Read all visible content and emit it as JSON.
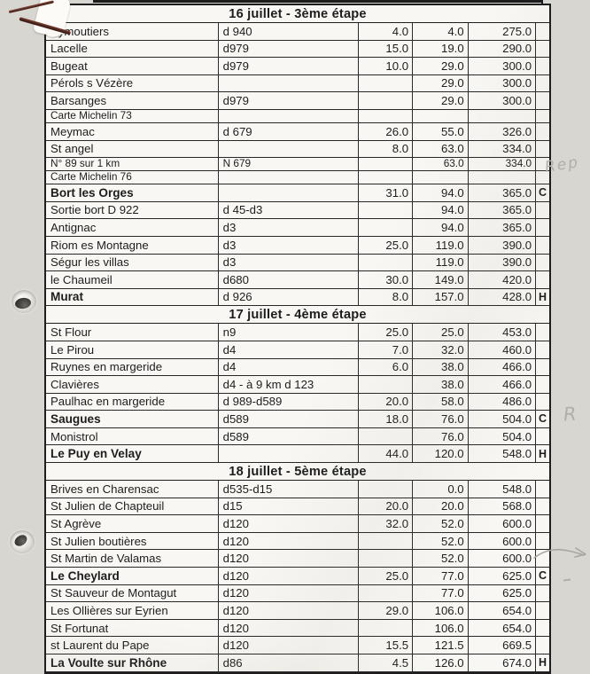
{
  "table": {
    "rows": [
      {
        "type": "stage",
        "label": "16 juillet - 3ème étape"
      },
      {
        "name": "Eymoutiers",
        "route": "d 940",
        "leg": "4.0",
        "cum": "4.0",
        "total": "275.0",
        "flag": ""
      },
      {
        "name": "Lacelle",
        "route": "d979",
        "leg": "15.0",
        "cum": "19.0",
        "total": "290.0",
        "flag": ""
      },
      {
        "name": "Bugeat",
        "route": "d979",
        "leg": "10.0",
        "cum": "29.0",
        "total": "300.0",
        "flag": ""
      },
      {
        "name": "Pérols s Vézère",
        "route": "",
        "leg": "",
        "cum": "29.0",
        "total": "300.0",
        "flag": ""
      },
      {
        "name": "Barsanges",
        "route": "d979",
        "leg": "",
        "cum": "29.0",
        "total": "300.0",
        "flag": ""
      },
      {
        "type": "note",
        "name": "Carte Michelin 73",
        "route": "",
        "leg": "",
        "cum": "",
        "total": "",
        "flag": ""
      },
      {
        "name": "Meymac",
        "route": "d 679",
        "leg": "26.0",
        "cum": "55.0",
        "total": "326.0",
        "flag": ""
      },
      {
        "name": "St angel",
        "route": "",
        "leg": "8.0",
        "cum": "63.0",
        "total": "334.0",
        "flag": ""
      },
      {
        "type": "note",
        "name": "N° 89 sur 1 km",
        "route": "N 679",
        "leg": "",
        "cum": "63.0",
        "total": "334.0",
        "flag": ""
      },
      {
        "type": "note",
        "name": "Carte Michelin 76",
        "route": "",
        "leg": "",
        "cum": "",
        "total": "",
        "flag": ""
      },
      {
        "name": "Bort les Orges",
        "bold": true,
        "route": "",
        "leg": "31.0",
        "cum": "94.0",
        "total": "365.0",
        "flag": "C"
      },
      {
        "name": "Sortie bort  D 922",
        "route": "d 45-d3",
        "leg": "",
        "cum": "94.0",
        "total": "365.0",
        "flag": ""
      },
      {
        "name": "Antignac",
        "route": "d3",
        "leg": "",
        "cum": "94.0",
        "total": "365.0",
        "flag": ""
      },
      {
        "name": "Riom es Montagne",
        "route": "d3",
        "leg": "25.0",
        "cum": "119.0",
        "total": "390.0",
        "flag": ""
      },
      {
        "name": "Ségur les villas",
        "route": "d3",
        "leg": "",
        "cum": "119.0",
        "total": "390.0",
        "flag": ""
      },
      {
        "name": "le Chaumeil",
        "route": "d680",
        "leg": "30.0",
        "cum": "149.0",
        "total": "420.0",
        "flag": ""
      },
      {
        "name": "Murat",
        "bold": true,
        "route": "d 926",
        "leg": "8.0",
        "cum": "157.0",
        "total": "428.0",
        "flag": "H"
      },
      {
        "type": "stage",
        "label": "17 juillet  - 4ème étape"
      },
      {
        "name": "St Flour",
        "route": "n9",
        "leg": "25.0",
        "cum": "25.0",
        "total": "453.0",
        "flag": ""
      },
      {
        "name": "Le Pirou",
        "route": "d4",
        "leg": "7.0",
        "cum": "32.0",
        "total": "460.0",
        "flag": ""
      },
      {
        "name": "Ruynes en margeride",
        "route": "d4",
        "leg": "6.0",
        "cum": "38.0",
        "total": "466.0",
        "flag": ""
      },
      {
        "name": "Clavières",
        "route": "d4 - à 9 km   d 123",
        "leg": "",
        "cum": "38.0",
        "total": "466.0",
        "flag": ""
      },
      {
        "name": "Paulhac en margeride",
        "route": "d 989-d589",
        "leg": "20.0",
        "cum": "58.0",
        "total": "486.0",
        "flag": ""
      },
      {
        "name": "Saugues",
        "bold": true,
        "route": "d589",
        "leg": "18.0",
        "cum": "76.0",
        "total": "504.0",
        "flag": "C"
      },
      {
        "name": "Monistrol",
        "route": "d589",
        "leg": "",
        "cum": "76.0",
        "total": "504.0",
        "flag": ""
      },
      {
        "name": "Le Puy en Velay",
        "bold": true,
        "route": "",
        "leg": "44.0",
        "cum": "120.0",
        "total": "548.0",
        "flag": "H"
      },
      {
        "type": "stage",
        "label": "18 juillet - 5ème étape"
      },
      {
        "name": "Brives en Charensac",
        "route": "d535-d15",
        "leg": "",
        "cum": "0.0",
        "total": "548.0",
        "flag": ""
      },
      {
        "name": "St Julien de Chapteuil",
        "route": "d15",
        "leg": "20.0",
        "cum": "20.0",
        "total": "568.0",
        "flag": ""
      },
      {
        "name": "St Agrève",
        "route": "d120",
        "leg": "32.0",
        "cum": "52.0",
        "total": "600.0",
        "flag": ""
      },
      {
        "name": "St Julien boutières",
        "route": "d120",
        "leg": "",
        "cum": "52.0",
        "total": "600.0",
        "flag": ""
      },
      {
        "name": "St Martin de Valamas",
        "route": "d120",
        "leg": "",
        "cum": "52.0",
        "total": "600.0",
        "flag": ""
      },
      {
        "name": "Le Cheylard",
        "bold": true,
        "route": "d120",
        "leg": "25.0",
        "cum": "77.0",
        "total": "625.0",
        "flag": "C"
      },
      {
        "name": "St Sauveur de Montagut",
        "route": "d120",
        "leg": "",
        "cum": "77.0",
        "total": "625.0",
        "flag": ""
      },
      {
        "name": "Les Ollières sur Eyrien",
        "route": "d120",
        "leg": "29.0",
        "cum": "106.0",
        "total": "654.0",
        "flag": ""
      },
      {
        "name": "St Fortunat",
        "route": "d120",
        "leg": "",
        "cum": "106.0",
        "total": "654.0",
        "flag": ""
      },
      {
        "name": "st Laurent du Pape",
        "route": "d120",
        "leg": "15.5",
        "cum": "121.5",
        "total": "669.5",
        "flag": ""
      },
      {
        "name": "La Voulte sur Rhône",
        "bold": true,
        "route": "d86",
        "leg": "4.5",
        "cum": "126.0",
        "total": "674.0",
        "flag": "H"
      }
    ]
  },
  "annotations": {
    "rep": "Rep",
    "r": "R"
  },
  "colors": {
    "ink": "#1d1d1d",
    "pencil": "#b3afa7",
    "paper": "#edebe6",
    "staple": "#5a2a22"
  }
}
